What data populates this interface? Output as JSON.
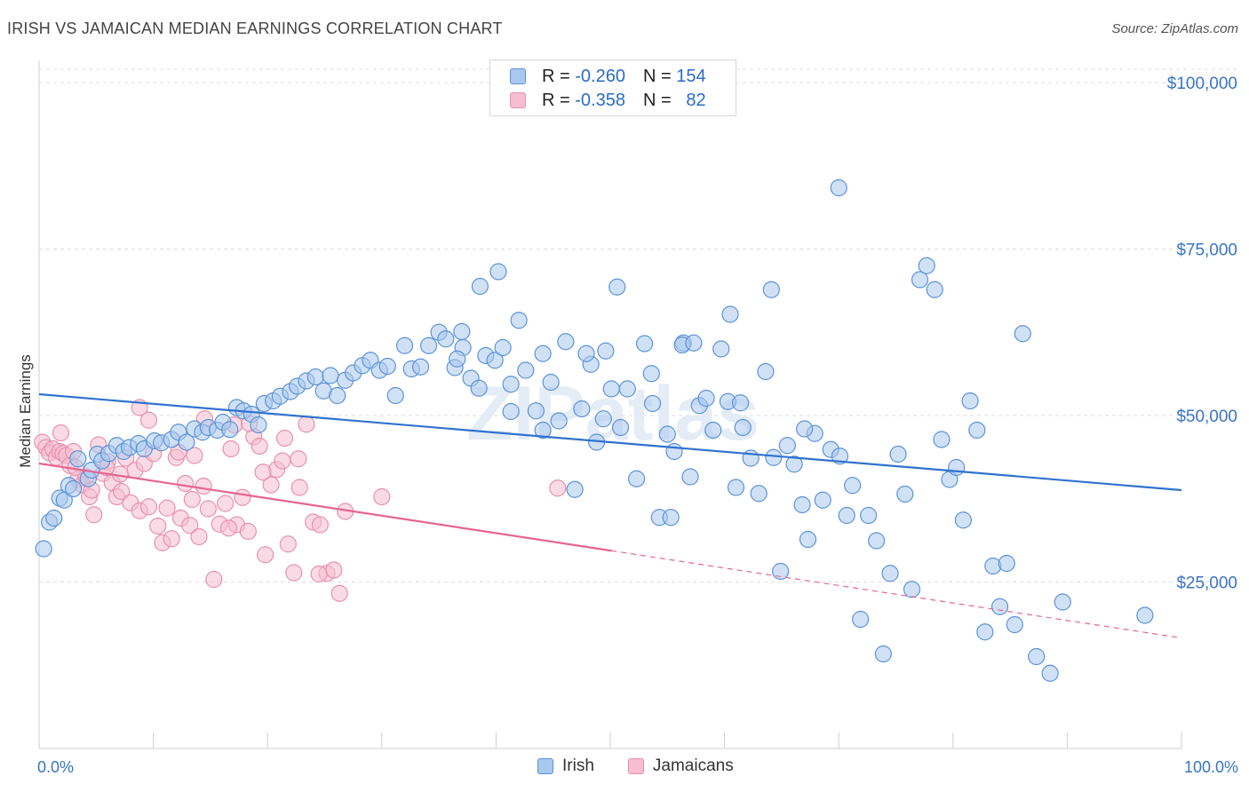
{
  "title": "IRISH VS JAMAICAN MEDIAN EARNINGS CORRELATION CHART",
  "source": "Source: ZipAtlas.com",
  "watermark": "ZIPatlas",
  "colors": {
    "irish_fill": "#a9c8ee",
    "irish_stroke": "#5b93d8",
    "irish_line": "#2f72cf",
    "jamaican_fill": "#f6bed0",
    "jamaican_stroke": "#e890ad",
    "jamaican_line": "#e7648f",
    "axis_text": "#3a74c5",
    "grid": "#dedede"
  },
  "legend": {
    "irish": {
      "r_label": "R =",
      "r_value": "-0.260",
      "n_label": "N =",
      "n_value": "154"
    },
    "jamaican": {
      "r_label": "R =",
      "r_value": "-0.358",
      "n_label": "N =",
      "n_value": "82"
    }
  },
  "bottom_legend": {
    "irish": "Irish",
    "jamaican": "Jamaicans"
  },
  "chart_data": {
    "type": "scatter",
    "title": "IRISH VS JAMAICAN MEDIAN EARNINGS CORRELATION CHART",
    "xlabel": "",
    "ylabel": "Median Earnings",
    "xlim": [
      0,
      100
    ],
    "ylim": [
      0,
      102000
    ],
    "x_tick_labels": [
      "0.0%",
      "100.0%"
    ],
    "y_ticks": [
      25000,
      50000,
      75000,
      100000
    ],
    "y_tick_labels": [
      "$25,000",
      "$50,000",
      "$75,000",
      "$100,000"
    ],
    "grid": true,
    "legend_position": "top-center",
    "series": [
      {
        "name": "Irish",
        "trend": {
          "x": [
            0,
            100
          ],
          "y": [
            53200,
            38800
          ]
        },
        "points": [
          [
            0.4,
            30000
          ],
          [
            0.9,
            34000
          ],
          [
            1.3,
            34600
          ],
          [
            1.8,
            37600
          ],
          [
            2.2,
            37300
          ],
          [
            2.6,
            39500
          ],
          [
            3.0,
            39000
          ],
          [
            3.4,
            43500
          ],
          [
            4.3,
            40500
          ],
          [
            4.6,
            41800
          ],
          [
            5.1,
            44200
          ],
          [
            5.5,
            43200
          ],
          [
            6.1,
            44300
          ],
          [
            6.8,
            45500
          ],
          [
            7.4,
            44600
          ],
          [
            7.9,
            45200
          ],
          [
            8.7,
            45800
          ],
          [
            9.2,
            45000
          ],
          [
            10.1,
            46200
          ],
          [
            10.7,
            45900
          ],
          [
            11.6,
            46400
          ],
          [
            12.2,
            47500
          ],
          [
            12.9,
            46000
          ],
          [
            13.6,
            48000
          ],
          [
            14.3,
            47500
          ],
          [
            14.8,
            48200
          ],
          [
            15.6,
            47800
          ],
          [
            16.1,
            49000
          ],
          [
            16.7,
            47900
          ],
          [
            17.3,
            51200
          ],
          [
            17.9,
            50700
          ],
          [
            18.6,
            50200
          ],
          [
            19.2,
            48600
          ],
          [
            19.7,
            51800
          ],
          [
            20.5,
            52200
          ],
          [
            21.1,
            52900
          ],
          [
            22.0,
            53600
          ],
          [
            22.6,
            54400
          ],
          [
            23.4,
            55200
          ],
          [
            24.2,
            55800
          ],
          [
            24.9,
            53700
          ],
          [
            25.5,
            56000
          ],
          [
            26.1,
            53000
          ],
          [
            26.8,
            55300
          ],
          [
            27.5,
            56400
          ],
          [
            28.3,
            57500
          ],
          [
            29.0,
            58300
          ],
          [
            29.8,
            56800
          ],
          [
            30.5,
            57400
          ],
          [
            31.2,
            53000
          ],
          [
            32.0,
            60500
          ],
          [
            32.6,
            57000
          ],
          [
            33.4,
            57300
          ],
          [
            34.1,
            60500
          ],
          [
            35.0,
            62500
          ],
          [
            35.6,
            61500
          ],
          [
            36.4,
            57200
          ],
          [
            37.1,
            60200
          ],
          [
            37.8,
            55600
          ],
          [
            38.5,
            54100
          ],
          [
            39.1,
            59000
          ],
          [
            39.9,
            58300
          ],
          [
            40.6,
            60200
          ],
          [
            41.3,
            54700
          ],
          [
            42.0,
            64300
          ],
          [
            42.6,
            56800
          ],
          [
            43.5,
            50700
          ],
          [
            44.1,
            59300
          ],
          [
            44.8,
            55000
          ],
          [
            45.5,
            49200
          ],
          [
            46.1,
            61100
          ],
          [
            46.9,
            38900
          ],
          [
            47.5,
            51000
          ],
          [
            48.3,
            57700
          ],
          [
            48.8,
            46000
          ],
          [
            49.4,
            49500
          ],
          [
            50.1,
            54000
          ],
          [
            50.9,
            48200
          ],
          [
            51.5,
            54000
          ],
          [
            52.3,
            40500
          ],
          [
            53.0,
            60800
          ],
          [
            53.6,
            56300
          ],
          [
            54.3,
            34700
          ],
          [
            55.0,
            47200
          ],
          [
            55.6,
            44600
          ],
          [
            56.4,
            60900
          ],
          [
            57.0,
            40800
          ],
          [
            57.8,
            51500
          ],
          [
            58.4,
            52600
          ],
          [
            59.0,
            47800
          ],
          [
            59.7,
            60000
          ],
          [
            60.3,
            52100
          ],
          [
            61.0,
            39200
          ],
          [
            61.6,
            48200
          ],
          [
            62.3,
            43600
          ],
          [
            63.0,
            38300
          ],
          [
            63.6,
            56600
          ],
          [
            64.3,
            43700
          ],
          [
            64.9,
            26600
          ],
          [
            65.5,
            45500
          ],
          [
            66.1,
            42700
          ],
          [
            66.8,
            36600
          ],
          [
            67.3,
            31400
          ],
          [
            67.9,
            47300
          ],
          [
            68.6,
            37300
          ],
          [
            69.3,
            44900
          ],
          [
            70.1,
            43900
          ],
          [
            70.7,
            35000
          ],
          [
            71.2,
            39500
          ],
          [
            71.9,
            19400
          ],
          [
            72.6,
            35000
          ],
          [
            73.3,
            31200
          ],
          [
            73.9,
            14200
          ],
          [
            74.5,
            26300
          ],
          [
            75.2,
            44200
          ],
          [
            75.8,
            38200
          ],
          [
            76.4,
            23900
          ],
          [
            77.1,
            70400
          ],
          [
            77.7,
            72500
          ],
          [
            78.4,
            68900
          ],
          [
            79.0,
            46400
          ],
          [
            79.7,
            40400
          ],
          [
            80.3,
            42200
          ],
          [
            80.9,
            34300
          ],
          [
            81.5,
            52200
          ],
          [
            82.1,
            47800
          ],
          [
            82.8,
            17500
          ],
          [
            83.5,
            27400
          ],
          [
            84.1,
            21300
          ],
          [
            84.7,
            27800
          ],
          [
            85.4,
            18600
          ],
          [
            86.1,
            62300
          ],
          [
            87.3,
            13800
          ],
          [
            88.5,
            11300
          ],
          [
            89.6,
            22000
          ],
          [
            96.8,
            20000
          ],
          [
            70.0,
            84200
          ],
          [
            56.3,
            60600
          ],
          [
            53.7,
            51800
          ],
          [
            57.3,
            60900
          ],
          [
            61.4,
            51900
          ],
          [
            36.6,
            58500
          ],
          [
            41.3,
            50600
          ],
          [
            38.6,
            69400
          ],
          [
            40.2,
            71600
          ],
          [
            47.9,
            59300
          ],
          [
            49.6,
            59700
          ],
          [
            37.0,
            62600
          ],
          [
            44.1,
            47800
          ],
          [
            55.3,
            34700
          ],
          [
            67.0,
            48000
          ],
          [
            64.1,
            68900
          ],
          [
            60.5,
            65200
          ],
          [
            50.6,
            69300
          ]
        ]
      },
      {
        "name": "Jamaicans",
        "trend": {
          "x": [
            0,
            50.1
          ],
          "y": [
            42800,
            29700
          ]
        },
        "trend_extension": {
          "x": [
            50.1,
            100
          ],
          "y": [
            29700,
            16600
          ]
        },
        "points": [
          [
            0.3,
            46000
          ],
          [
            0.6,
            45200
          ],
          [
            0.9,
            44400
          ],
          [
            1.2,
            45000
          ],
          [
            1.5,
            43700
          ],
          [
            1.8,
            44600
          ],
          [
            2.1,
            44300
          ],
          [
            2.4,
            44000
          ],
          [
            2.7,
            42500
          ],
          [
            3.0,
            44600
          ],
          [
            3.4,
            40400
          ],
          [
            3.8,
            39600
          ],
          [
            4.1,
            40800
          ],
          [
            4.4,
            37800
          ],
          [
            4.8,
            35100
          ],
          [
            5.2,
            45600
          ],
          [
            5.6,
            41300
          ],
          [
            6.0,
            43100
          ],
          [
            6.4,
            39900
          ],
          [
            6.8,
            37800
          ],
          [
            7.2,
            38600
          ],
          [
            7.6,
            43600
          ],
          [
            8.0,
            36900
          ],
          [
            8.4,
            41800
          ],
          [
            8.8,
            35700
          ],
          [
            9.2,
            42800
          ],
          [
            9.6,
            36300
          ],
          [
            10.0,
            44300
          ],
          [
            10.4,
            33400
          ],
          [
            10.8,
            30900
          ],
          [
            11.2,
            36100
          ],
          [
            11.6,
            31500
          ],
          [
            12.0,
            43700
          ],
          [
            12.4,
            34600
          ],
          [
            12.8,
            39800
          ],
          [
            13.2,
            33500
          ],
          [
            13.6,
            44000
          ],
          [
            14.0,
            31800
          ],
          [
            14.4,
            39400
          ],
          [
            14.8,
            36000
          ],
          [
            15.3,
            25400
          ],
          [
            15.8,
            33700
          ],
          [
            16.3,
            36800
          ],
          [
            16.8,
            45000
          ],
          [
            17.3,
            33600
          ],
          [
            17.8,
            37700
          ],
          [
            18.3,
            32600
          ],
          [
            18.8,
            46800
          ],
          [
            19.3,
            45400
          ],
          [
            19.8,
            29100
          ],
          [
            20.3,
            39600
          ],
          [
            20.8,
            41900
          ],
          [
            21.3,
            43200
          ],
          [
            21.8,
            30700
          ],
          [
            22.3,
            26400
          ],
          [
            22.8,
            39200
          ],
          [
            23.4,
            48700
          ],
          [
            24.0,
            34000
          ],
          [
            24.6,
            33600
          ],
          [
            25.2,
            26300
          ],
          [
            25.8,
            26800
          ],
          [
            26.3,
            23300
          ],
          [
            26.8,
            35600
          ],
          [
            8.8,
            51200
          ],
          [
            9.6,
            49300
          ],
          [
            12.2,
            44500
          ],
          [
            14.5,
            49500
          ],
          [
            17.1,
            48600
          ],
          [
            18.4,
            48800
          ],
          [
            21.5,
            46600
          ],
          [
            22.7,
            43500
          ],
          [
            30.0,
            37800
          ],
          [
            1.9,
            47400
          ],
          [
            3.2,
            42200
          ],
          [
            4.6,
            38800
          ],
          [
            5.9,
            42200
          ],
          [
            7.1,
            41200
          ],
          [
            13.4,
            37400
          ],
          [
            16.6,
            33100
          ],
          [
            19.6,
            41500
          ],
          [
            24.5,
            26200
          ],
          [
            45.4,
            39100
          ]
        ]
      }
    ]
  }
}
